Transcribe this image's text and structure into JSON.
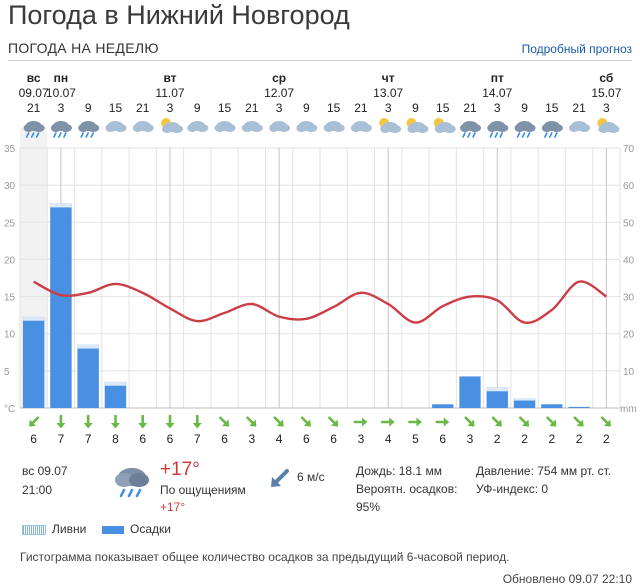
{
  "header": {
    "title": "Погода в Нижний Новгород"
  },
  "week": {
    "label": "ПОГОДА НА НЕДЕЛЮ",
    "detail_link": "Подробный прогноз"
  },
  "days": [
    {
      "name": "вс",
      "date": "09.07",
      "slot": 0
    },
    {
      "name": "пн",
      "date": "10.07",
      "slot": 1
    },
    {
      "name": "вт",
      "date": "11.07",
      "slot": 5
    },
    {
      "name": "ср",
      "date": "12.07",
      "slot": 9
    },
    {
      "name": "чт",
      "date": "13.07",
      "slot": 13
    },
    {
      "name": "пт",
      "date": "14.07",
      "slot": 17
    },
    {
      "name": "сб",
      "date": "15.07",
      "slot": 21
    }
  ],
  "hours": [
    21,
    3,
    9,
    15,
    21,
    3,
    9,
    15,
    21,
    3,
    9,
    15,
    21,
    3,
    9,
    15,
    21,
    3,
    9,
    15,
    21,
    3
  ],
  "icons": [
    "rain-cloud-icon",
    "rain-cloud-icon",
    "rain-cloud-icon",
    "cloud-icon",
    "cloud-icon",
    "partly-cloudy-icon",
    "cloud-icon",
    "cloud-icon",
    "cloud-icon",
    "cloud-icon",
    "cloud-icon",
    "cloud-icon",
    "cloud-icon",
    "partly-cloudy-icon",
    "partly-cloudy-icon",
    "partly-cloudy-icon",
    "rain-cloud-icon",
    "rain-cloud-icon",
    "rain-cloud-icon",
    "rain-cloud-icon",
    "cloud-icon",
    "partly-cloudy-icon"
  ],
  "chart_data": {
    "type": "bar",
    "x": [
      21,
      3,
      9,
      15,
      21,
      3,
      9,
      15,
      21,
      3,
      9,
      15,
      21,
      3,
      9,
      15,
      21,
      3,
      9,
      15,
      21,
      3
    ],
    "left_axis": {
      "ylim": [
        0,
        35
      ],
      "ticks": [
        0,
        5,
        10,
        15,
        20,
        25,
        30,
        35
      ],
      "unit": "°C"
    },
    "right_axis": {
      "ylim": [
        0,
        70
      ],
      "ticks": [
        10,
        20,
        30,
        40,
        50,
        60,
        70
      ],
      "unit": "mm"
    },
    "series": [
      {
        "name": "Осадки",
        "type": "bar",
        "axis": "right",
        "values": [
          23.5,
          54,
          16,
          6,
          0,
          0,
          0,
          0,
          0,
          0,
          0,
          0,
          0,
          0,
          0,
          1,
          8.5,
          4.5,
          2,
          1,
          0.3,
          0
        ]
      },
      {
        "name": "Ливни",
        "type": "bar",
        "axis": "right",
        "values": [
          24.5,
          55,
          17,
          7,
          0,
          0,
          0,
          0,
          0,
          0,
          0,
          0,
          0,
          0,
          0,
          0,
          0,
          5.5,
          2.5,
          0,
          0,
          0
        ]
      },
      {
        "type": "line",
        "axis": "left",
        "values": [
          17,
          15.2,
          15.5,
          16.7,
          15.5,
          13.4,
          11.7,
          12.8,
          14,
          12.3,
          12,
          13.6,
          15.5,
          14,
          11.5,
          13.7,
          15,
          14.5,
          11.5,
          13.2,
          17,
          15
        ]
      }
    ],
    "grid": true
  },
  "wind": {
    "speeds": [
      6,
      7,
      7,
      8,
      6,
      6,
      7,
      6,
      3,
      4,
      6,
      6,
      3,
      4,
      5,
      6,
      3,
      2,
      2,
      2,
      2,
      2
    ],
    "dirs": [
      "down-left-arrow-icon",
      "down-arrow-icon",
      "down-arrow-icon",
      "down-arrow-icon",
      "down-arrow-icon",
      "down-arrow-icon",
      "down-arrow-icon",
      "down-right-arrow-icon",
      "down-right-arrow-icon",
      "down-right-arrow-icon",
      "down-right-arrow-icon",
      "down-right-arrow-icon",
      "right-arrow-icon",
      "right-arrow-icon",
      "right-arrow-icon",
      "right-arrow-icon",
      "down-right-arrow-icon",
      "down-right-arrow-icon",
      "down-right-arrow-icon",
      "down-right-arrow-icon",
      "down-right-arrow-icon",
      "down-right-arrow-icon"
    ]
  },
  "current": {
    "day": "вс 09.07",
    "time": "21:00",
    "temp": "+17°",
    "feels_label": "По ощущениям",
    "feels_value": "+17°",
    "wind": "6 м/с",
    "rain": "Дождь: 18.1 мм",
    "prob_label": "Вероятн. осадков:",
    "prob_value": "95%",
    "pressure": "Давление: 754 мм рт. ст.",
    "uv": "УФ-индекс: 0"
  },
  "legend": {
    "showers": "Ливни",
    "precip": "Осадки"
  },
  "footer": {
    "note": "Гистограмма показывает общее количество осадков за предыдущий 6-часовой период.",
    "updated": "Обновлено 09.07 22:10"
  },
  "colors": {
    "bar": "#4a90e2",
    "line": "#cc3d45",
    "wind_arrow": "#6ab845",
    "grid": "#e3e3e3",
    "axis_text": "#999999"
  }
}
